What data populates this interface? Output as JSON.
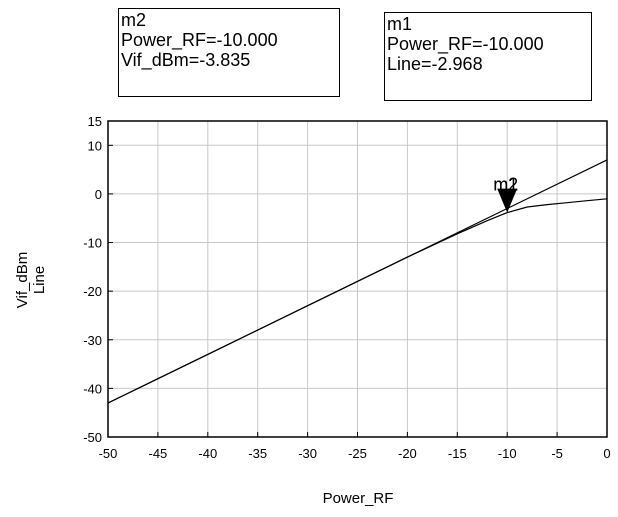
{
  "markers": [
    {
      "id": "m2",
      "lines": [
        "m2",
        "Power_RF=-10.000",
        "Vif_dBm=-3.835"
      ]
    },
    {
      "id": "m1",
      "lines": [
        "m1",
        "Power_RF=-10.000",
        "Line=-2.968"
      ]
    }
  ],
  "marker_label": "m1 ",
  "marker_label_overlap": "m2",
  "chart_data": {
    "type": "line",
    "xlabel": "Power_RF",
    "ylabel_lines": [
      "Vif_dBm",
      "Line"
    ],
    "xlim": [
      -50,
      0
    ],
    "ylim": [
      -50,
      15
    ],
    "x_ticks": [
      -50,
      -45,
      -40,
      -35,
      -30,
      -25,
      -20,
      -15,
      -10,
      -5,
      0
    ],
    "y_ticks": [
      15,
      10,
      0,
      -10,
      -20,
      -30,
      -40,
      -50
    ],
    "grid": true,
    "series": [
      {
        "name": "Vif_dBm",
        "x": [
          -50,
          -40,
          -30,
          -20,
          -15,
          -12,
          -10,
          -8,
          -6,
          -4,
          -2,
          0
        ],
        "y": [
          -43.0,
          -33.0,
          -23.0,
          -13.0,
          -8.2,
          -5.5,
          -3.835,
          -2.7,
          -2.2,
          -1.8,
          -1.4,
          -1.0
        ]
      },
      {
        "name": "Line",
        "x": [
          -50,
          0
        ],
        "y": [
          -43.0,
          7.0
        ]
      }
    ],
    "marker_point": {
      "x": -10,
      "y": -3.835
    }
  }
}
